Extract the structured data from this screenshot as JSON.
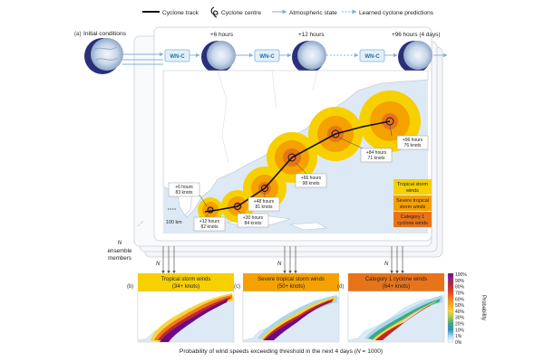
{
  "legend": {
    "cyclone_track": "Cyclone track",
    "cyclone_centre": "Cyclone centre",
    "atmospheric_state": "Atmospheric state",
    "learned_predictions": "Learned cyclone predictions"
  },
  "panel_a": {
    "label": "(a)",
    "initial_conditions": "Initial conditions",
    "model_label": "WN-C",
    "time_labels": [
      "+6 hours",
      "+12 hours",
      "+96 hours (4 days)"
    ],
    "scale_label": "100 km",
    "ensemble_n": "N",
    "ensemble_text": [
      "ensemble",
      "members"
    ],
    "track_callouts": [
      {
        "time": "+6 hours",
        "speed": "83 knots"
      },
      {
        "time": "+12 hours",
        "speed": "82 knots"
      },
      {
        "time": "+30 hours",
        "speed": "84 knots"
      },
      {
        "time": "+48 hours",
        "speed": "81 knots"
      },
      {
        "time": "+66 hours",
        "speed": "98 knots"
      },
      {
        "time": "+84 hours",
        "speed": "71 knots"
      },
      {
        "time": "+96 hours",
        "speed": "76 knots"
      }
    ],
    "wind_legend": [
      {
        "label": [
          "Tropical storm",
          "winds"
        ],
        "color": "#f7d000"
      },
      {
        "label": [
          "Severe tropical",
          "storm winds"
        ],
        "color": "#f5a100"
      },
      {
        "label": [
          "Category 1",
          "cyclone winds"
        ],
        "color": "#e8741a"
      }
    ]
  },
  "arrows_n": [
    "N",
    "N",
    "N"
  ],
  "probability_panels": [
    {
      "label": "(b)",
      "title": "Tropical storm winds",
      "subtitle": "(34+ knots)",
      "color": "#f7d000"
    },
    {
      "label": "(c)",
      "title": "Severe tropical storm winds",
      "subtitle": "(50+ knots)",
      "color": "#f5a100"
    },
    {
      "label": "(d)",
      "title": "Category 1 cyclone winds",
      "subtitle": "(64+ knots)",
      "color": "#e8741a"
    }
  ],
  "colorbar": {
    "title": "Probability",
    "ticks": [
      "100%",
      "90%",
      "80%",
      "70%",
      "60%",
      "50%",
      "40%",
      "30%",
      "20%",
      "10%",
      "1%",
      "0%"
    ],
    "colors": [
      "#6a0a8a",
      "#9a1f7a",
      "#c0282c",
      "#e0401f",
      "#f07b1c",
      "#f7a81a",
      "#f9d33a",
      "#a4c84e",
      "#3aa888",
      "#2e8fc8",
      "#a9d7ef",
      "#ffffff"
    ]
  },
  "caption": {
    "main": "Probability of wind speeds exceeding threshold in the next 4 days (",
    "n": "N",
    "rest": " = 1000)"
  },
  "colors": {
    "land": "#ffffff",
    "sea": "#dde9f4",
    "panel_frame": "#c9cfd6",
    "arrow": "#7fb2d8",
    "track": "#111111",
    "wn_box": "#e3f0f9",
    "wn_text": "#2a6fa3"
  }
}
